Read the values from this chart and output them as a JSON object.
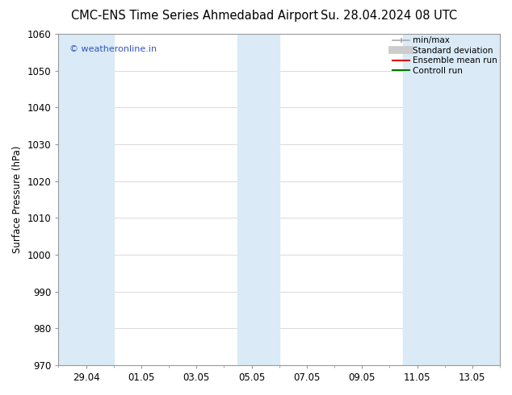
{
  "title_left": "CMC-ENS Time Series Ahmedabad Airport",
  "title_right": "Su. 28.04.2024 08 UTC",
  "ylabel": "Surface Pressure (hPa)",
  "ylim": [
    970,
    1060
  ],
  "yticks": [
    970,
    980,
    990,
    1000,
    1010,
    1020,
    1030,
    1040,
    1050,
    1060
  ],
  "xtick_labels": [
    "29.04",
    "01.05",
    "03.05",
    "05.05",
    "07.05",
    "09.05",
    "11.05",
    "13.05"
  ],
  "xtick_days": [
    1,
    3,
    5,
    7,
    9,
    11,
    13,
    15
  ],
  "shade_color": "#daeaf7",
  "watermark_text": "© weatheronline.in",
  "watermark_color": "#3355bb",
  "legend_items": [
    {
      "label": "min/max",
      "color": "#aaaaaa",
      "lw": 1.2
    },
    {
      "label": "Standard deviation",
      "color": "#cccccc",
      "lw": 7
    },
    {
      "label": "Ensemble mean run",
      "color": "#dd0000",
      "lw": 1.5
    },
    {
      "label": "Controll run",
      "color": "#007700",
      "lw": 1.5
    }
  ],
  "background_color": "#ffffff",
  "grid_color": "#cccccc",
  "title_fontsize": 10.5,
  "tick_fontsize": 8.5,
  "ylabel_fontsize": 8.5,
  "watermark_fontsize": 8,
  "legend_fontsize": 7.5
}
